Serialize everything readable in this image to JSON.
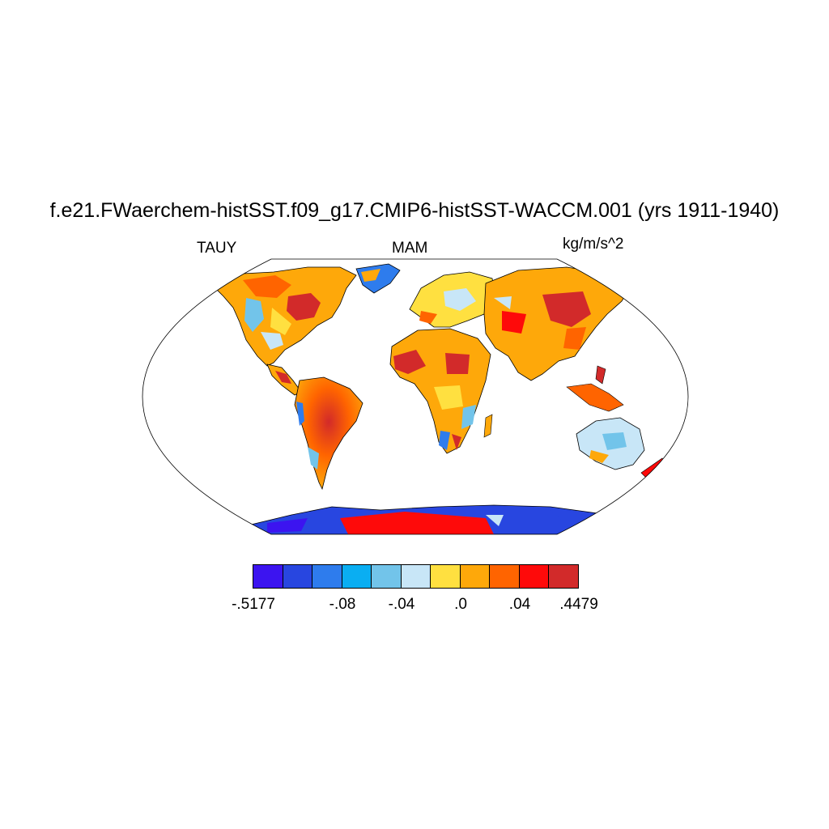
{
  "title": "f.e21.FWaerchem-histSST.f09_g17.CMIP6-histSST-WACCM.001 (yrs 1911-1940)",
  "left_label": "TAUY",
  "center_label": "MAM",
  "right_label": "kg/m/s^2",
  "colorbar": {
    "colors": [
      "#3c14f0",
      "#2846e0",
      "#2e7ced",
      "#0aaef2",
      "#72c4ea",
      "#c8e6f7",
      "#ffe040",
      "#fea80a",
      "#ff6400",
      "#fe0a0a",
      "#d22a2a"
    ],
    "labels": [
      {
        "text": "-.5177"
      },
      {
        "text": "-.08"
      },
      {
        "text": "-.04"
      },
      {
        "text": ".0"
      },
      {
        "text": ".04"
      },
      {
        "text": ".4479"
      }
    ]
  },
  "map": {
    "projection": "Robinson",
    "variable": "TAUY",
    "season": "MAM"
  }
}
